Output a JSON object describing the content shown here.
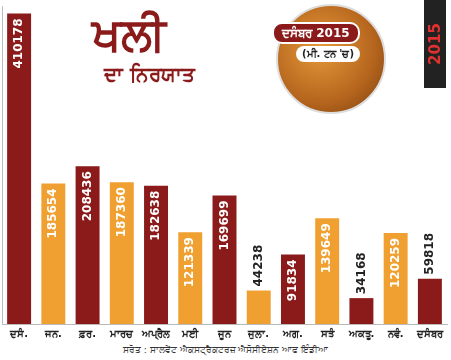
{
  "chart_data": {
    "type": "bar",
    "title": "ਖਲੀ",
    "subtitle": "ਦਾ ਨਿਰਯਾਤ",
    "annotations": [
      "ਦਸੰਬਰ 2015",
      "(ਮੀ. ਟਨ 'ਚ)",
      "2015"
    ],
    "source": "ਸਰੋਤ : ਸਾਲਵੇਂਟ ਐਕਸਟ੍ਰੈਕਟਰਜ਼ ਐਸੋਸੀਏਸ਼ਨ ਆਫ ਇੰਡੀਆ",
    "categories": [
      "ਦਸੰ.",
      "ਜਨ.",
      "ਫ਼ਰ.",
      "ਮਾਰਚ",
      "ਅਪ੍ਰੈਲ",
      "ਮਈ",
      "ਜੂਨ",
      "ਜੁਲਾ.",
      "ਅਗ.",
      "ਸਤੰ",
      "ਅਕਤੂ.",
      "ਨਵੰ.",
      "ਦਸੰਬਰ"
    ],
    "values": [
      410178,
      185654,
      208436,
      187360,
      182638,
      121339,
      169699,
      44238,
      91834,
      139649,
      34168,
      120259,
      59818
    ],
    "colors": [
      "#8b1a1a",
      "#f0a030",
      "#8b1a1a",
      "#f0a030",
      "#8b1a1a",
      "#f0a030",
      "#8b1a1a",
      "#f0a030",
      "#8b1a1a",
      "#f0a030",
      "#8b1a1a",
      "#f0a030",
      "#8b1a1a"
    ],
    "ylim": [
      0,
      420000
    ],
    "grid": false,
    "legend": false,
    "data_labels": true,
    "tick_labels": "x"
  }
}
